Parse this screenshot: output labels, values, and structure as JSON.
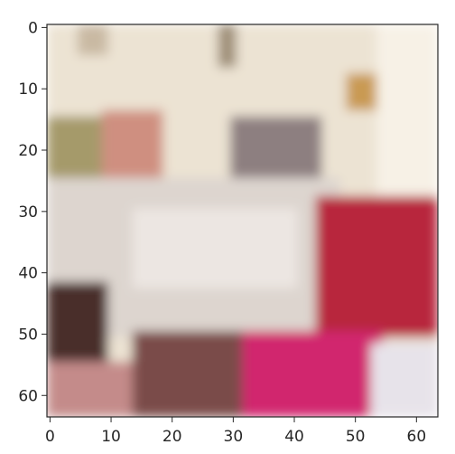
{
  "chart_data": {
    "type": "heatmap",
    "title": "",
    "xlabel": "",
    "ylabel": "",
    "xlim": [
      -0.5,
      63.5
    ],
    "ylim": [
      63.5,
      -0.5
    ],
    "x_ticks": [
      0,
      10,
      20,
      30,
      40,
      50,
      60
    ],
    "y_ticks": [
      0,
      10,
      20,
      30,
      40,
      50,
      60
    ],
    "grid": false,
    "image_shape": [
      64,
      64,
      3
    ],
    "content": "low-resolution RGB image of a bedroom: bed with white blanket, pillows, pink/red fabric in lower right",
    "regions": [
      {
        "name": "background-wall",
        "x": [
          0,
          63
        ],
        "y": [
          0,
          63
        ],
        "color": "#ece3d3"
      },
      {
        "name": "wall-mark-left",
        "x": [
          5,
          9
        ],
        "y": [
          0,
          4
        ],
        "color": "#c9b9a3"
      },
      {
        "name": "wall-mark-center",
        "x": [
          28,
          30
        ],
        "y": [
          0,
          6
        ],
        "color": "#9f8f78"
      },
      {
        "name": "lamp-shade-right",
        "x": [
          49,
          53
        ],
        "y": [
          8,
          13
        ],
        "color": "#c99a52"
      },
      {
        "name": "window-light-right",
        "x": [
          54,
          63
        ],
        "y": [
          0,
          36
        ],
        "color": "#f7f1e6"
      },
      {
        "name": "pillow-left-olive",
        "x": [
          0,
          8
        ],
        "y": [
          15,
          28
        ],
        "color": "#a59a6a"
      },
      {
        "name": "pillow-pink",
        "x": [
          9,
          18
        ],
        "y": [
          14,
          25
        ],
        "color": "#cf8f80"
      },
      {
        "name": "headboard-patch",
        "x": [
          30,
          44
        ],
        "y": [
          15,
          26
        ],
        "color": "#8d7f80"
      },
      {
        "name": "blanket-white",
        "x": [
          0,
          47
        ],
        "y": [
          25,
          50
        ],
        "color": "#ddd5cf"
      },
      {
        "name": "blanket-highlight",
        "x": [
          14,
          40
        ],
        "y": [
          30,
          42
        ],
        "color": "#ece6e2"
      },
      {
        "name": "red-fabric",
        "x": [
          44,
          63
        ],
        "y": [
          28,
          50
        ],
        "color": "#b8283c"
      },
      {
        "name": "dark-floor-left",
        "x": [
          0,
          9
        ],
        "y": [
          42,
          55
        ],
        "color": "#4a2f2b"
      },
      {
        "name": "floor-lower-left",
        "x": [
          0,
          14
        ],
        "y": [
          55,
          63
        ],
        "color": "#c48b8a"
      },
      {
        "name": "bed-skirt-dark",
        "x": [
          14,
          38
        ],
        "y": [
          50,
          63
        ],
        "color": "#7a4b48"
      },
      {
        "name": "magenta-fabric",
        "x": [
          32,
          54
        ],
        "y": [
          50,
          63
        ],
        "color": "#d1276e"
      },
      {
        "name": "white-floor-right",
        "x": [
          53,
          63
        ],
        "y": [
          52,
          63
        ],
        "color": "#e7e3ea"
      }
    ]
  }
}
